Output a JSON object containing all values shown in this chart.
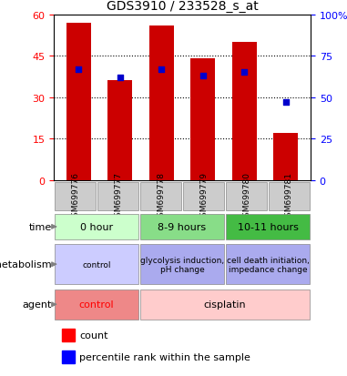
{
  "title": "GDS3910 / 233528_s_at",
  "samples": [
    "GSM699776",
    "GSM699777",
    "GSM699778",
    "GSM699779",
    "GSM699780",
    "GSM699781"
  ],
  "bar_heights": [
    57,
    36,
    56,
    44,
    50,
    17
  ],
  "percentile_values_pct": [
    67,
    62,
    67,
    63,
    65,
    47
  ],
  "bar_color": "#cc0000",
  "percentile_color": "#0000cc",
  "ylim_left": [
    0,
    60
  ],
  "ylim_right": [
    0,
    100
  ],
  "yticks_left": [
    0,
    15,
    30,
    45,
    60
  ],
  "ytick_labels_left": [
    "0",
    "15",
    "30",
    "45",
    "60"
  ],
  "yticks_right": [
    0,
    25,
    50,
    75,
    100
  ],
  "ytick_labels_right": [
    "0",
    "25",
    "50",
    "75",
    "100%"
  ],
  "time_spans": [
    [
      0,
      2,
      "0 hour",
      "#ccffcc"
    ],
    [
      2,
      4,
      "8-9 hours",
      "#88dd88"
    ],
    [
      4,
      6,
      "10-11 hours",
      "#44bb44"
    ]
  ],
  "meta_spans": [
    [
      0,
      2,
      "control",
      "#ccccff"
    ],
    [
      2,
      4,
      "glycolysis induction,\npH change",
      "#aaaaee"
    ],
    [
      4,
      6,
      "cell death initiation,\nimpedance change",
      "#aaaaee"
    ]
  ],
  "agent_spans": [
    [
      0,
      2,
      "control",
      "#ee8888"
    ],
    [
      2,
      6,
      "cisplatin",
      "#ffcccc"
    ]
  ],
  "row_labels": [
    "time",
    "metabolism",
    "agent"
  ],
  "sample_bg_color": "#cccccc",
  "bg_color": "#ffffff"
}
